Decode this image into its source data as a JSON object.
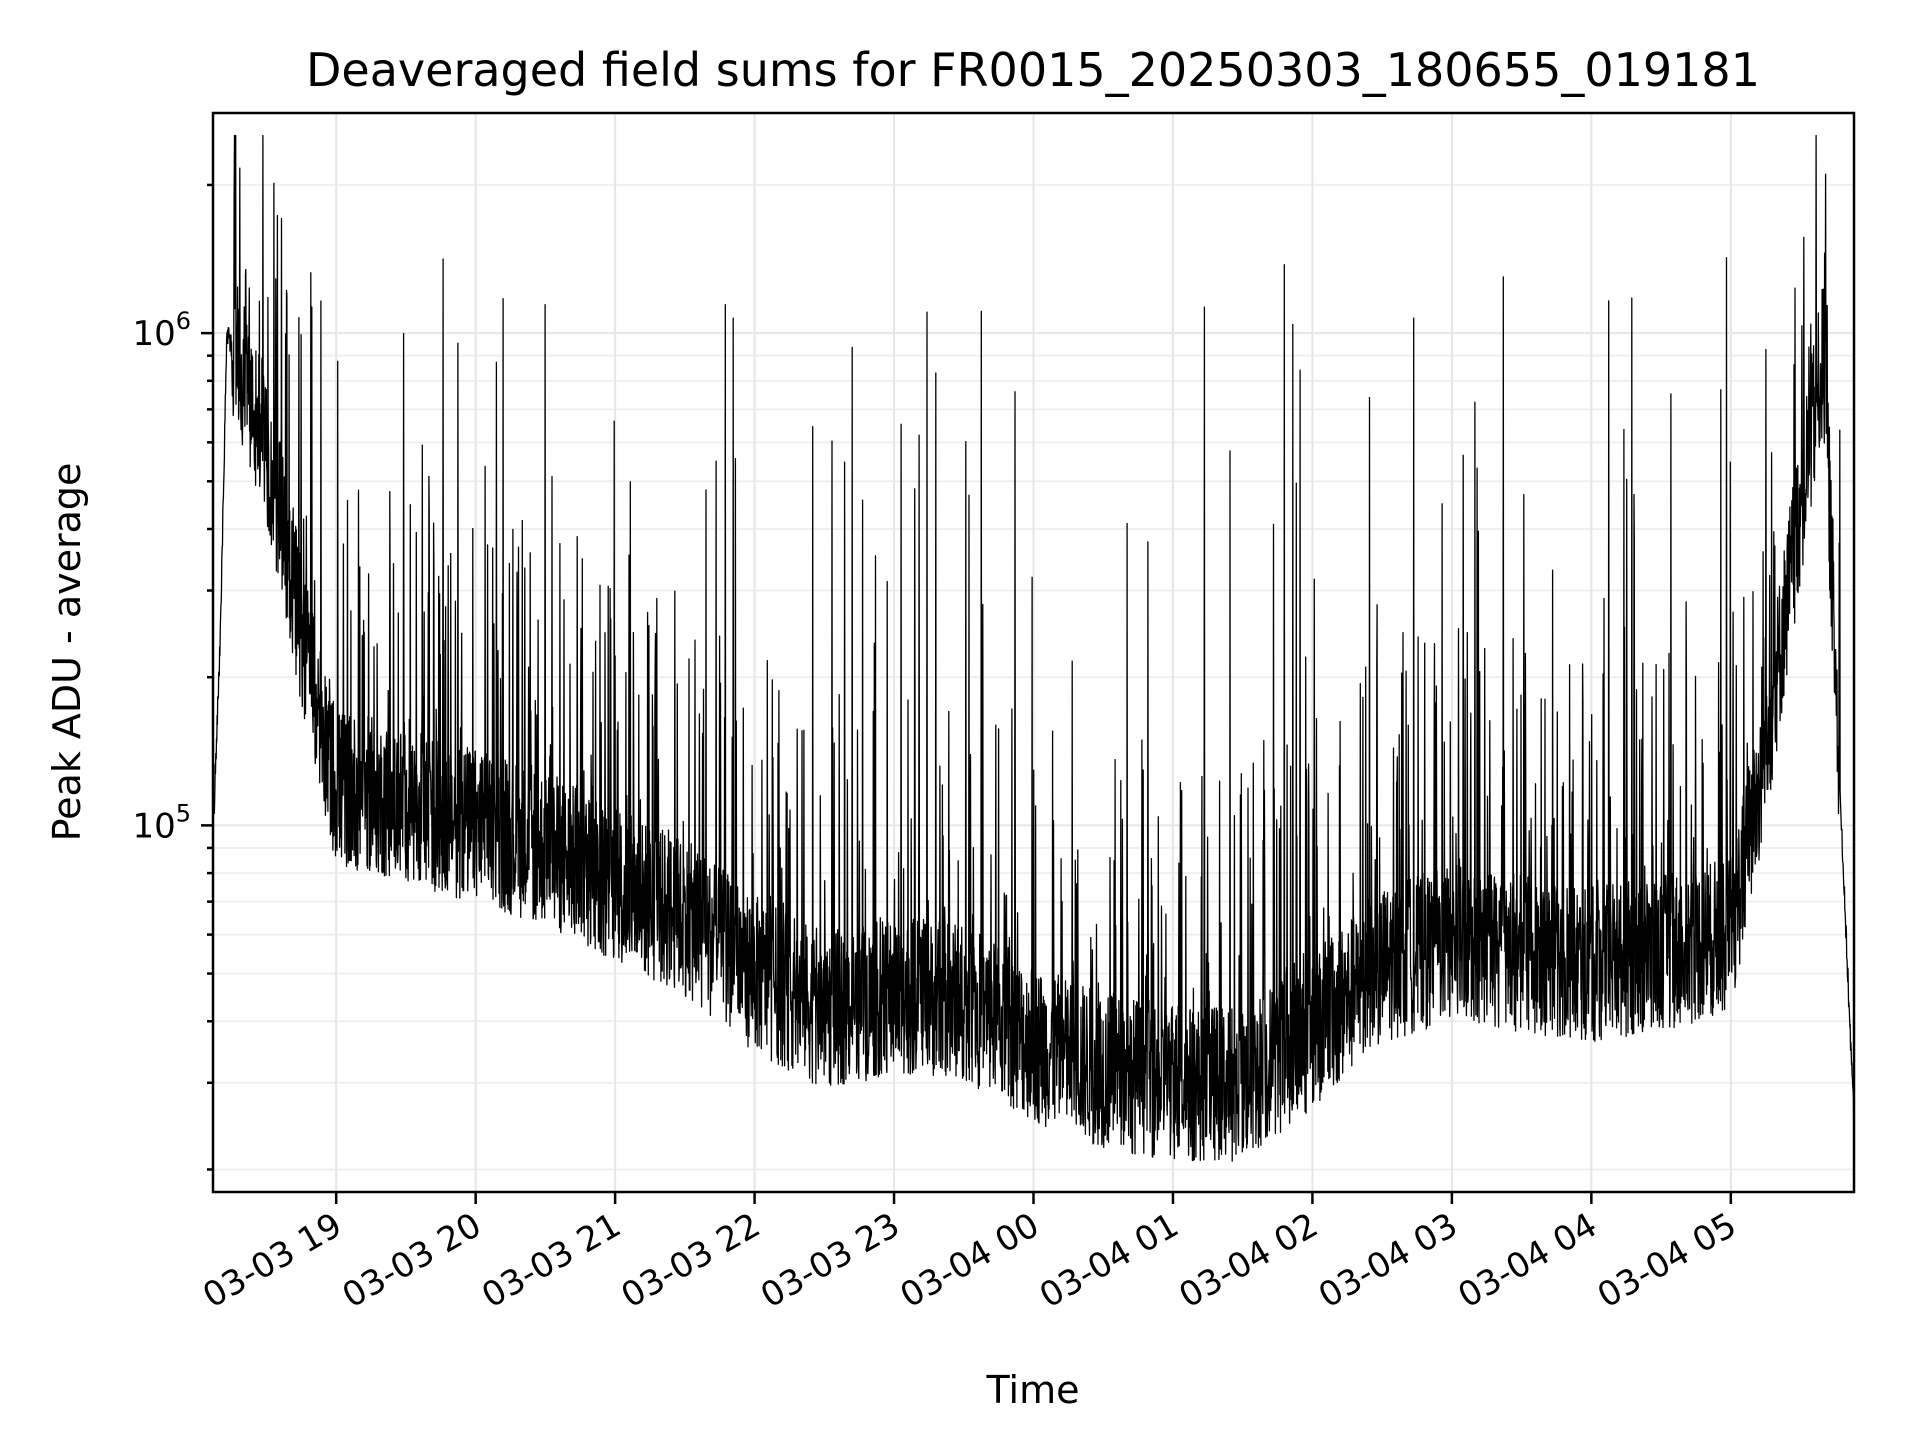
{
  "chart_data": {
    "type": "line",
    "title": "Deaveraged field sums for FR0015_20250303_180655_019181",
    "xlabel": "Time",
    "ylabel": "Peak ADU - average",
    "yscale": "log",
    "ylim": [
      18000,
      2800000
    ],
    "xlim": [
      "03-03 18:07",
      "03-04 05:53"
    ],
    "grid": true,
    "legend": "none",
    "line_color": "#000000",
    "x_ticks": [
      "03-03 19",
      "03-03 20",
      "03-03 21",
      "03-03 22",
      "03-03 23",
      "03-04 00",
      "03-04 01",
      "03-04 02",
      "03-04 03",
      "03-04 04",
      "03-04 05"
    ],
    "y_ticks": [
      {
        "value": 100000,
        "base": "10",
        "exp": "5"
      },
      {
        "value": 1000000,
        "base": "10",
        "exp": "6"
      }
    ],
    "series": [
      {
        "x": [
          "03-03 18:07",
          "03-03 18:10",
          "03-03 18:13",
          "03-03 18:20",
          "03-03 18:30",
          "03-03 18:45",
          "03-03 19:00",
          "03-03 19:30",
          "03-03 20:00",
          "03-03 20:30",
          "03-03 21:00",
          "03-03 21:30",
          "03-03 22:00",
          "03-03 22:30",
          "03-03 23:00",
          "03-03 23:30",
          "03-04 00:00",
          "03-04 00:30",
          "03-04 01:00",
          "03-04 01:30",
          "03-04 02:00",
          "03-04 02:30",
          "03-04 03:00",
          "03-04 03:30",
          "03-04 04:00",
          "03-04 04:30",
          "03-04 05:00",
          "03-04 05:15",
          "03-04 05:30",
          "03-04 05:40",
          "03-04 05:48",
          "03-04 05:53"
        ],
        "y": [
          95000,
          230000,
          1000000,
          800000,
          600000,
          250000,
          120000,
          110000,
          100000,
          90000,
          75000,
          65000,
          50000,
          42000,
          45000,
          44000,
          36000,
          32000,
          30000,
          30000,
          38000,
          52000,
          58000,
          55000,
          52000,
          55000,
          60000,
          140000,
          450000,
          900000,
          90000,
          25000
        ],
        "spike_peaks_y": [
          2200000,
          1800000,
          1500000,
          1600000,
          1400000,
          1700000,
          1300000,
          1500000,
          1600000,
          1400000,
          1500000,
          1300000,
          1600000,
          1700000,
          1500000,
          1600000,
          1700000
        ]
      }
    ]
  }
}
